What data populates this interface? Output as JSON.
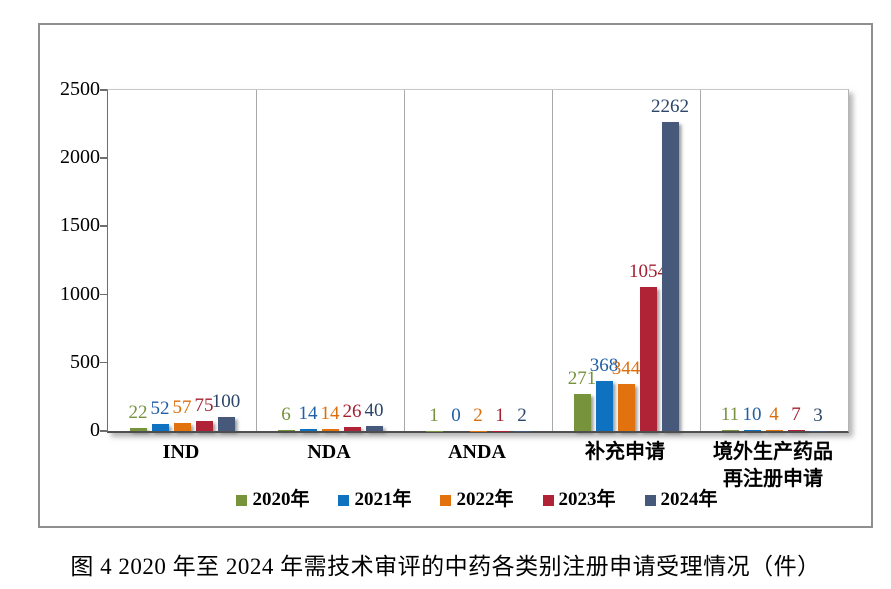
{
  "figure": {
    "caption": "图 4  2020 年至 2024 年需技术审评的中药各类别注册申请受理情况（件）"
  },
  "chart_data": {
    "type": "bar",
    "title": "",
    "xlabel": "",
    "ylabel": "",
    "ylim": [
      0,
      2500
    ],
    "yticks": [
      0,
      500,
      1000,
      1500,
      2000,
      2500
    ],
    "legend_position": "bottom-inside",
    "data_labels": "outside-end, colored per series",
    "grid": "vertical panel separators only",
    "categories": [
      "IND",
      "NDA",
      "ANDA",
      "补充申请",
      "境外生产药品再注册申请"
    ],
    "category_display": [
      [
        "IND"
      ],
      [
        "NDA"
      ],
      [
        "ANDA"
      ],
      [
        "补充申请"
      ],
      [
        "境外生产药品",
        "再注册申请"
      ]
    ],
    "series": [
      {
        "name": "2020年",
        "color": "#77933C",
        "label_color": "#76923C",
        "values": [
          22,
          6,
          1,
          271,
          11
        ]
      },
      {
        "name": "2021年",
        "color": "#0E72C0",
        "label_color": "#1F5FA6",
        "values": [
          52,
          14,
          0,
          368,
          10
        ]
      },
      {
        "name": "2022年",
        "color": "#E2720D",
        "label_color": "#DB6E0C",
        "values": [
          57,
          14,
          2,
          344,
          4
        ]
      },
      {
        "name": "2023年",
        "color": "#B02236",
        "label_color": "#A31F30",
        "values": [
          75,
          26,
          1,
          1054,
          7
        ]
      },
      {
        "name": "2024年",
        "color": "#47597B",
        "label_color": "#2C4669",
        "values": [
          100,
          40,
          2,
          2262,
          3
        ]
      }
    ]
  }
}
